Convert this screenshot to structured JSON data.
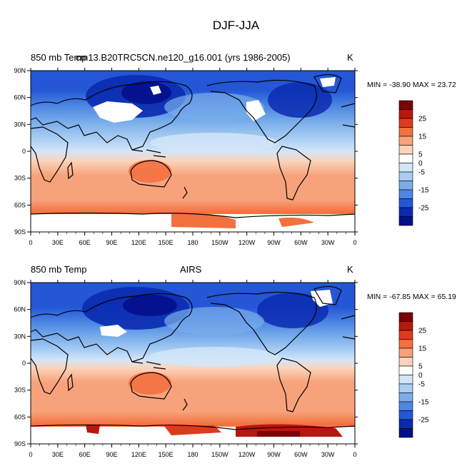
{
  "title": "DJF-JJA",
  "x_ticks": [
    "0",
    "30E",
    "60E",
    "90E",
    "120E",
    "150E",
    "180",
    "150W",
    "120W",
    "90W",
    "60W",
    "30W",
    "0"
  ],
  "y_ticks": [
    "90N",
    "60N",
    "30N",
    "0",
    "30S",
    "60S",
    "90S"
  ],
  "colorbar_labels": [
    "25",
    "15",
    "5",
    "0",
    "-5",
    "-15",
    "-25"
  ],
  "colorbar_colors": [
    "#7a0403",
    "#b8170c",
    "#dd3a1e",
    "#f3703f",
    "#f7a27a",
    "#fbd3bb",
    "#ffffff",
    "#d3e6f9",
    "#a9cdf3",
    "#7aaeeb",
    "#4d86e3",
    "#2456d6",
    "#0a2bb0",
    "#03108a"
  ],
  "panels": [
    {
      "left_label": "850 mb Temp",
      "center_label": "cm13.B20TRC5CN.ne120_g16.001 (yrs 1986-2005)",
      "right_label": "K",
      "stats": "MIN = -38.90 MAX =  23.72"
    },
    {
      "left_label": "850 mb Temp",
      "center_label": "AIRS",
      "right_label": "K",
      "stats": "MIN = -67.85 MAX =  65.19"
    }
  ]
}
